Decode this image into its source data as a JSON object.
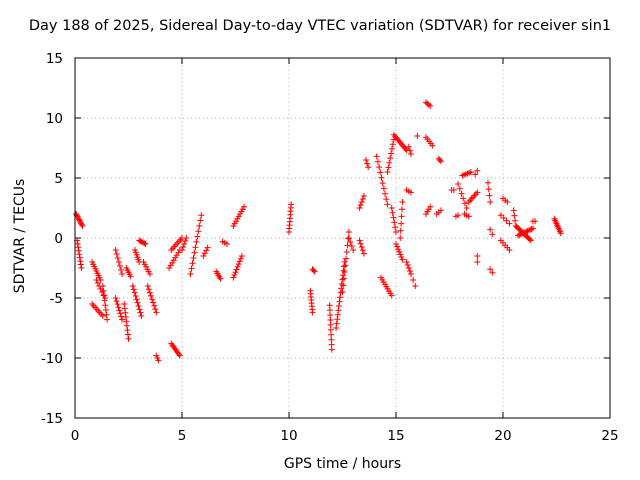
{
  "chart_data": {
    "type": "scatter",
    "title": "Day 188 of 2025, Sidereal Day-to-day VTEC variation (SDTVAR) for receiver sin1",
    "xlabel": "GPS time / hours",
    "ylabel": "SDTVAR / TECUs",
    "xlim": [
      0,
      25
    ],
    "ylim": [
      -15,
      15
    ],
    "xticks": [
      "0",
      "5",
      "10",
      "15",
      "20",
      "25"
    ],
    "yticks": [
      "-15",
      "-10",
      "-5",
      "0",
      "5",
      "10",
      "15"
    ],
    "grid": true,
    "marker": "+",
    "color": "#ff0000",
    "segments": [
      {
        "x0": 0.05,
        "y0": 2.0,
        "x1": 0.35,
        "y1": 1.0,
        "n": 10
      },
      {
        "x0": 0.1,
        "y0": -0.2,
        "x1": 0.3,
        "y1": -2.5,
        "n": 9
      },
      {
        "x0": 0.8,
        "y0": -2.0,
        "x1": 1.2,
        "y1": -3.5,
        "n": 9
      },
      {
        "x0": 0.8,
        "y0": -5.5,
        "x1": 1.3,
        "y1": -6.5,
        "n": 8
      },
      {
        "x0": 1.0,
        "y0": -3.5,
        "x1": 1.4,
        "y1": -5.0,
        "n": 7
      },
      {
        "x0": 1.3,
        "y0": -4.0,
        "x1": 1.5,
        "y1": -6.8,
        "n": 8
      },
      {
        "x0": 1.9,
        "y0": -1.0,
        "x1": 2.2,
        "y1": -3.0,
        "n": 7
      },
      {
        "x0": 1.9,
        "y0": -5.0,
        "x1": 2.2,
        "y1": -6.8,
        "n": 8
      },
      {
        "x0": 2.4,
        "y0": -2.5,
        "x1": 2.6,
        "y1": -3.2,
        "n": 5
      },
      {
        "x0": 2.3,
        "y0": -5.5,
        "x1": 2.5,
        "y1": -8.4,
        "n": 9
      },
      {
        "x0": 2.8,
        "y0": -1.0,
        "x1": 3.0,
        "y1": -2.0,
        "n": 6
      },
      {
        "x0": 2.7,
        "y0": -4.0,
        "x1": 3.1,
        "y1": -6.5,
        "n": 10
      },
      {
        "x0": 3.0,
        "y0": -0.2,
        "x1": 3.3,
        "y1": -0.5,
        "n": 6
      },
      {
        "x0": 3.2,
        "y0": -2.0,
        "x1": 3.5,
        "y1": -3.0,
        "n": 6
      },
      {
        "x0": 3.4,
        "y0": -4.0,
        "x1": 3.8,
        "y1": -6.2,
        "n": 9
      },
      {
        "x0": 3.8,
        "y0": -9.8,
        "x1": 3.9,
        "y1": -10.2,
        "n": 3
      },
      {
        "x0": 4.5,
        "y0": -1.0,
        "x1": 5.0,
        "y1": 0.0,
        "n": 8
      },
      {
        "x0": 4.4,
        "y0": -2.5,
        "x1": 4.9,
        "y1": -1.0,
        "n": 8
      },
      {
        "x0": 4.5,
        "y0": -8.8,
        "x1": 4.9,
        "y1": -9.8,
        "n": 9
      },
      {
        "x0": 5.0,
        "y0": -1.0,
        "x1": 5.2,
        "y1": 0.0,
        "n": 5
      },
      {
        "x0": 5.4,
        "y0": -3.0,
        "x1": 5.9,
        "y1": 1.9,
        "n": 12
      },
      {
        "x0": 6.0,
        "y0": -1.5,
        "x1": 6.2,
        "y1": -0.8,
        "n": 4
      },
      {
        "x0": 6.6,
        "y0": -2.8,
        "x1": 6.8,
        "y1": -3.4,
        "n": 5
      },
      {
        "x0": 6.9,
        "y0": -0.3,
        "x1": 7.1,
        "y1": -0.5,
        "n": 3
      },
      {
        "x0": 7.4,
        "y0": -3.3,
        "x1": 7.8,
        "y1": -1.5,
        "n": 9
      },
      {
        "x0": 7.4,
        "y0": 1.0,
        "x1": 7.9,
        "y1": 2.6,
        "n": 9
      },
      {
        "x0": 10.0,
        "y0": 0.5,
        "x1": 10.1,
        "y1": 2.8,
        "n": 9
      },
      {
        "x0": 11.0,
        "y0": -4.4,
        "x1": 11.1,
        "y1": -6.2,
        "n": 8
      },
      {
        "x0": 11.1,
        "y0": -2.6,
        "x1": 11.2,
        "y1": -2.8,
        "n": 3
      },
      {
        "x0": 11.9,
        "y0": -5.6,
        "x1": 12.0,
        "y1": -9.3,
        "n": 10
      },
      {
        "x0": 12.2,
        "y0": -7.5,
        "x1": 12.6,
        "y1": -2.0,
        "n": 16
      },
      {
        "x0": 12.5,
        "y0": -4.5,
        "x1": 12.8,
        "y1": 0.5,
        "n": 10
      },
      {
        "x0": 12.8,
        "y0": 0.0,
        "x1": 13.0,
        "y1": -1.0,
        "n": 4
      },
      {
        "x0": 13.3,
        "y0": 2.5,
        "x1": 13.5,
        "y1": 3.5,
        "n": 5
      },
      {
        "x0": 13.3,
        "y0": -0.2,
        "x1": 13.5,
        "y1": -1.3,
        "n": 5
      },
      {
        "x0": 13.6,
        "y0": 6.5,
        "x1": 13.7,
        "y1": 5.9,
        "n": 3
      },
      {
        "x0": 14.1,
        "y0": 6.8,
        "x1": 14.6,
        "y1": 2.8,
        "n": 10
      },
      {
        "x0": 14.3,
        "y0": -3.3,
        "x1": 14.8,
        "y1": -4.8,
        "n": 9
      },
      {
        "x0": 14.6,
        "y0": 5.5,
        "x1": 14.9,
        "y1": 8.2,
        "n": 8
      },
      {
        "x0": 14.9,
        "y0": 8.6,
        "x1": 15.5,
        "y1": 7.3,
        "n": 12
      },
      {
        "x0": 14.8,
        "y0": 2.5,
        "x1": 15.0,
        "y1": 0.5,
        "n": 6
      },
      {
        "x0": 15.0,
        "y0": -0.5,
        "x1": 15.3,
        "y1": -1.8,
        "n": 7
      },
      {
        "x0": 15.2,
        "y0": 0.0,
        "x1": 15.3,
        "y1": 3.0,
        "n": 6
      },
      {
        "x0": 15.5,
        "y0": -2.0,
        "x1": 15.7,
        "y1": -3.0,
        "n": 5
      },
      {
        "x0": 15.5,
        "y0": 4.0,
        "x1": 15.7,
        "y1": 3.8,
        "n": 3
      },
      {
        "x0": 15.6,
        "y0": 7.6,
        "x1": 15.7,
        "y1": 7.0,
        "n": 3
      },
      {
        "x0": 15.8,
        "y0": -3.5,
        "x1": 15.9,
        "y1": -4.0,
        "n": 2
      },
      {
        "x0": 16.0,
        "y0": 8.5,
        "x1": 16.0,
        "y1": 8.5,
        "n": 1
      },
      {
        "x0": 16.4,
        "y0": 11.3,
        "x1": 16.6,
        "y1": 11.0,
        "n": 4
      },
      {
        "x0": 16.4,
        "y0": 8.4,
        "x1": 16.7,
        "y1": 7.7,
        "n": 5
      },
      {
        "x0": 16.4,
        "y0": 2.0,
        "x1": 16.6,
        "y1": 2.6,
        "n": 4
      },
      {
        "x0": 16.9,
        "y0": 2.0,
        "x1": 17.1,
        "y1": 2.3,
        "n": 3
      },
      {
        "x0": 17.0,
        "y0": 6.6,
        "x1": 17.1,
        "y1": 6.4,
        "n": 3
      },
      {
        "x0": 17.6,
        "y0": 4.0,
        "x1": 17.7,
        "y1": 4.0,
        "n": 2
      },
      {
        "x0": 17.8,
        "y0": 1.8,
        "x1": 17.9,
        "y1": 1.9,
        "n": 2
      },
      {
        "x0": 17.9,
        "y0": 4.5,
        "x1": 18.3,
        "y1": 2.5,
        "n": 6
      },
      {
        "x0": 18.1,
        "y0": 5.2,
        "x1": 18.5,
        "y1": 5.5,
        "n": 6
      },
      {
        "x0": 18.2,
        "y0": 2.0,
        "x1": 18.4,
        "y1": 1.8,
        "n": 3
      },
      {
        "x0": 18.4,
        "y0": 3.0,
        "x1": 18.8,
        "y1": 3.8,
        "n": 7
      },
      {
        "x0": 18.7,
        "y0": 5.3,
        "x1": 18.8,
        "y1": 5.6,
        "n": 2
      },
      {
        "x0": 18.8,
        "y0": -1.5,
        "x1": 18.8,
        "y1": -2.0,
        "n": 2
      },
      {
        "x0": 19.3,
        "y0": 4.6,
        "x1": 19.4,
        "y1": 3.0,
        "n": 4
      },
      {
        "x0": 19.4,
        "y0": 0.7,
        "x1": 19.5,
        "y1": 0.3,
        "n": 2
      },
      {
        "x0": 19.4,
        "y0": -2.6,
        "x1": 19.5,
        "y1": -2.9,
        "n": 2
      },
      {
        "x0": 19.9,
        "y0": -0.2,
        "x1": 20.3,
        "y1": -1.0,
        "n": 5
      },
      {
        "x0": 20.0,
        "y0": 3.3,
        "x1": 20.2,
        "y1": 3.0,
        "n": 3
      },
      {
        "x0": 19.9,
        "y0": 1.9,
        "x1": 20.3,
        "y1": 1.2,
        "n": 4
      },
      {
        "x0": 20.5,
        "y0": 2.3,
        "x1": 20.6,
        "y1": 1.0,
        "n": 4
      },
      {
        "x0": 20.6,
        "y0": 1.0,
        "x1": 21.3,
        "y1": -0.2,
        "n": 14
      },
      {
        "x0": 20.7,
        "y0": 0.2,
        "x1": 21.4,
        "y1": 0.8,
        "n": 12
      },
      {
        "x0": 21.4,
        "y0": 1.4,
        "x1": 21.5,
        "y1": 1.4,
        "n": 2
      },
      {
        "x0": 22.4,
        "y0": 1.6,
        "x1": 22.7,
        "y1": 0.4,
        "n": 10
      }
    ]
  }
}
